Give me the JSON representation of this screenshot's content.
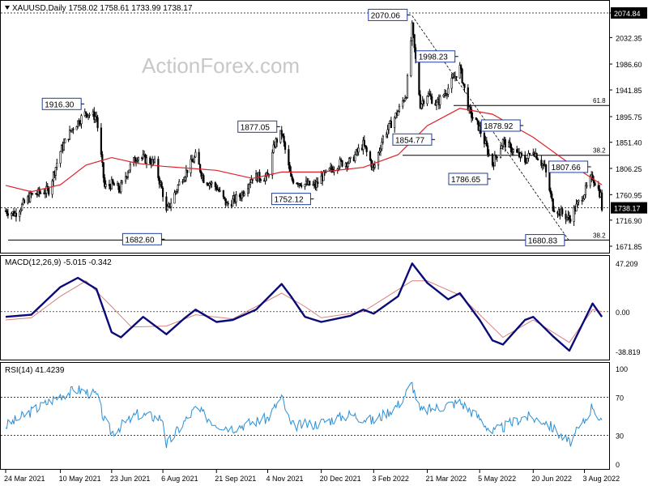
{
  "header": {
    "symbol_line": "XAUUSD,Daily  1758.02 1758.61 1733.99 1738.17",
    "watermark": "ActionForex.com"
  },
  "price_panel": {
    "y_ticks": [
      "2074.84",
      "2032.35",
      "1986.60",
      "1941.85",
      "1895.75",
      "1851.40",
      "1806.25",
      "1760.95",
      "1716.90",
      "1671.85"
    ],
    "current_price": "1738.17",
    "current_value": 1738.17,
    "ylim": [
      1671.85,
      2074.84
    ],
    "annotations": [
      {
        "text": "1916.30",
        "value": 1916.3,
        "date": "2021-06-01",
        "side": "left"
      },
      {
        "text": "1877.05",
        "value": 1877.05,
        "date": "2021-11-16",
        "side": "left"
      },
      {
        "text": "2070.06",
        "value": 2070.06,
        "date": "2022-03-08",
        "side": "left"
      },
      {
        "text": "1998.23",
        "value": 1998.23,
        "date": "2022-04-18",
        "side": "left"
      },
      {
        "text": "1854.77",
        "value": 1854.77,
        "date": "2022-03-29",
        "side": "left"
      },
      {
        "text": "1878.92",
        "value": 1878.92,
        "date": "2022-06-13",
        "side": "left"
      },
      {
        "text": "1807.66",
        "value": 1807.66,
        "date": "2022-08-10",
        "side": "left"
      },
      {
        "text": "1786.65",
        "value": 1786.65,
        "date": "2022-05-16",
        "side": "left"
      },
      {
        "text": "1752.12",
        "value": 1752.12,
        "date": "2021-12-15",
        "side": "left"
      },
      {
        "text": "1682.60",
        "value": 1682.6,
        "date": "2021-08-09",
        "side": "left"
      },
      {
        "text": "1680.83",
        "value": 1680.83,
        "date": "2022-07-21",
        "side": "left"
      }
    ],
    "fib_levels": [
      {
        "label": "61.8",
        "value": 1915.0
      },
      {
        "label": "38.2",
        "value": 1829.0
      },
      {
        "label": "38.2",
        "value": 1682.6
      }
    ],
    "dotted_levels": [
      2074.84,
      1738.17
    ]
  },
  "macd_panel": {
    "label": "MACD(12,26,9) -5.015 -0.342",
    "y_ticks": [
      "47.209",
      "0.00",
      "-38.819"
    ],
    "ylim": [
      -38.819,
      47.209
    ]
  },
  "rsi_panel": {
    "label": "RSI(14) 41.4239",
    "y_ticks": [
      "100",
      "70",
      "30",
      "0"
    ],
    "ylim": [
      0,
      100
    ],
    "levels": [
      70,
      30
    ]
  },
  "x_axis": {
    "labels": [
      "24 Mar 2021",
      "10 May 2021",
      "23 Jun 2021",
      "6 Aug 2021",
      "21 Sep 2021",
      "4 Nov 2021",
      "20 Dec 2021",
      "3 Feb 2022",
      "21 Mar 2022",
      "5 May 2022",
      "20 Jun 2022",
      "3 Aug 2022"
    ],
    "dates": [
      "2021-03-24",
      "2021-05-10",
      "2021-06-23",
      "2021-08-06",
      "2021-09-21",
      "2021-11-04",
      "2021-12-20",
      "2022-02-03",
      "2022-03-21",
      "2022-05-05",
      "2022-06-20",
      "2022-08-03"
    ]
  },
  "colors": {
    "candle": "#000000",
    "ma": "#e0202a",
    "macd": "#0a0a78",
    "signal": "#d98080",
    "rsi": "#2b8fd6",
    "label_border": "#1f3fa0",
    "grid": "#000000",
    "current_box": "#000000"
  },
  "chart_data": {
    "type": "candlestick",
    "title": "XAUUSD,Daily",
    "ohlc_latest": {
      "open": 1758.02,
      "high": 1758.61,
      "low": 1733.99,
      "close": 1738.17
    },
    "x_start": "2021-03-24",
    "x_end": "2022-08-17",
    "close_path": [
      [
        "2021-03-24",
        1733
      ],
      [
        "2021-04-01",
        1728
      ],
      [
        "2021-04-15",
        1760
      ],
      [
        "2021-04-30",
        1769
      ],
      [
        "2021-05-10",
        1836
      ],
      [
        "2021-05-20",
        1875
      ],
      [
        "2021-06-01",
        1903
      ],
      [
        "2021-06-10",
        1895
      ],
      [
        "2021-06-17",
        1774
      ],
      [
        "2021-06-23",
        1779
      ],
      [
        "2021-06-30",
        1770
      ],
      [
        "2021-07-07",
        1803
      ],
      [
        "2021-07-15",
        1828
      ],
      [
        "2021-07-30",
        1815
      ],
      [
        "2021-08-06",
        1763
      ],
      [
        "2021-08-09",
        1730
      ],
      [
        "2021-08-20",
        1781
      ],
      [
        "2021-09-03",
        1827
      ],
      [
        "2021-09-10",
        1788
      ],
      [
        "2021-09-21",
        1774
      ],
      [
        "2021-09-30",
        1743
      ],
      [
        "2021-10-12",
        1760
      ],
      [
        "2021-10-22",
        1792
      ],
      [
        "2021-11-04",
        1791
      ],
      [
        "2021-11-10",
        1849
      ],
      [
        "2021-11-16",
        1868
      ],
      [
        "2021-11-24",
        1788
      ],
      [
        "2021-12-06",
        1779
      ],
      [
        "2021-12-15",
        1776
      ],
      [
        "2021-12-20",
        1790
      ],
      [
        "2022-01-04",
        1815
      ],
      [
        "2022-01-14",
        1818
      ],
      [
        "2022-01-25",
        1848
      ],
      [
        "2022-02-03",
        1805
      ],
      [
        "2022-02-11",
        1860
      ],
      [
        "2022-02-24",
        1905
      ],
      [
        "2022-03-03",
        1936
      ],
      [
        "2022-03-08",
        2050
      ],
      [
        "2022-03-15",
        1917
      ],
      [
        "2022-03-21",
        1935
      ],
      [
        "2022-03-29",
        1917
      ],
      [
        "2022-04-08",
        1945
      ],
      [
        "2022-04-18",
        1980
      ],
      [
        "2022-04-26",
        1905
      ],
      [
        "2022-05-05",
        1875
      ],
      [
        "2022-05-16",
        1814
      ],
      [
        "2022-05-25",
        1853
      ],
      [
        "2022-06-13",
        1819
      ],
      [
        "2022-06-20",
        1838
      ],
      [
        "2022-06-30",
        1807
      ],
      [
        "2022-07-07",
        1740
      ],
      [
        "2022-07-21",
        1719
      ],
      [
        "2022-08-03",
        1765
      ],
      [
        "2022-08-10",
        1792
      ],
      [
        "2022-08-17",
        1760
      ],
      [
        "2022-08-18",
        1738
      ]
    ],
    "ma_path": [
      [
        "2021-03-24",
        1777
      ],
      [
        "2021-04-15",
        1766
      ],
      [
        "2021-05-10",
        1778
      ],
      [
        "2021-06-01",
        1812
      ],
      [
        "2021-06-23",
        1825
      ],
      [
        "2021-07-15",
        1815
      ],
      [
        "2021-08-06",
        1810
      ],
      [
        "2021-09-21",
        1803
      ],
      [
        "2021-10-22",
        1789
      ],
      [
        "2021-11-16",
        1800
      ],
      [
        "2021-12-20",
        1800
      ],
      [
        "2022-01-25",
        1808
      ],
      [
        "2022-02-24",
        1830
      ],
      [
        "2022-03-21",
        1880
      ],
      [
        "2022-04-18",
        1910
      ],
      [
        "2022-05-16",
        1900
      ],
      [
        "2022-06-20",
        1860
      ],
      [
        "2022-07-21",
        1815
      ],
      [
        "2022-08-18",
        1778
      ]
    ],
    "macd_path": [
      [
        "2021-03-24",
        -5
      ],
      [
        "2021-04-15",
        -3
      ],
      [
        "2021-05-10",
        24
      ],
      [
        "2021-05-25",
        33
      ],
      [
        "2021-06-10",
        22
      ],
      [
        "2021-06-23",
        -20
      ],
      [
        "2021-07-01",
        -25
      ],
      [
        "2021-07-20",
        -5
      ],
      [
        "2021-08-09",
        -22
      ],
      [
        "2021-08-25",
        -6
      ],
      [
        "2021-09-03",
        2
      ],
      [
        "2021-09-21",
        -10
      ],
      [
        "2021-10-05",
        -8
      ],
      [
        "2021-10-25",
        2
      ],
      [
        "2021-11-16",
        27
      ],
      [
        "2021-11-24",
        15
      ],
      [
        "2021-12-06",
        -5
      ],
      [
        "2021-12-20",
        -10
      ],
      [
        "2022-01-14",
        -4
      ],
      [
        "2022-01-25",
        2
      ],
      [
        "2022-02-03",
        -2
      ],
      [
        "2022-02-24",
        15
      ],
      [
        "2022-03-08",
        47
      ],
      [
        "2022-03-21",
        28
      ],
      [
        "2022-04-08",
        12
      ],
      [
        "2022-04-18",
        18
      ],
      [
        "2022-05-05",
        -8
      ],
      [
        "2022-05-16",
        -28
      ],
      [
        "2022-05-25",
        -32
      ],
      [
        "2022-06-13",
        -8
      ],
      [
        "2022-06-20",
        -5
      ],
      [
        "2022-07-07",
        -24
      ],
      [
        "2022-07-21",
        -38
      ],
      [
        "2022-08-03",
        -8
      ],
      [
        "2022-08-10",
        8
      ],
      [
        "2022-08-18",
        -5
      ]
    ],
    "signal_path": [
      [
        "2021-03-24",
        -8
      ],
      [
        "2021-04-15",
        -6
      ],
      [
        "2021-05-10",
        15
      ],
      [
        "2021-06-01",
        30
      ],
      [
        "2021-06-23",
        5
      ],
      [
        "2021-07-10",
        -15
      ],
      [
        "2021-08-09",
        -14
      ],
      [
        "2021-09-03",
        -3
      ],
      [
        "2021-10-05",
        -7
      ],
      [
        "2021-11-16",
        18
      ],
      [
        "2021-12-06",
        5
      ],
      [
        "2021-12-20",
        -6
      ],
      [
        "2022-01-25",
        0
      ],
      [
        "2022-03-08",
        30
      ],
      [
        "2022-03-21",
        30
      ],
      [
        "2022-04-18",
        16
      ],
      [
        "2022-05-16",
        -15
      ],
      [
        "2022-05-25",
        -25
      ],
      [
        "2022-06-20",
        -8
      ],
      [
        "2022-07-21",
        -30
      ],
      [
        "2022-08-10",
        2
      ],
      [
        "2022-08-18",
        0
      ]
    ],
    "rsi_path": [
      [
        "2021-03-24",
        40
      ],
      [
        "2021-04-15",
        55
      ],
      [
        "2021-05-10",
        72
      ],
      [
        "2021-05-25",
        78
      ],
      [
        "2021-06-10",
        72
      ],
      [
        "2021-06-17",
        45
      ],
      [
        "2021-06-23",
        33
      ],
      [
        "2021-07-15",
        52
      ],
      [
        "2021-08-06",
        48
      ],
      [
        "2021-08-09",
        20
      ],
      [
        "2021-08-25",
        45
      ],
      [
        "2021-09-03",
        58
      ],
      [
        "2021-09-21",
        42
      ],
      [
        "2021-10-05",
        38
      ],
      [
        "2021-11-04",
        48
      ],
      [
        "2021-11-16",
        70
      ],
      [
        "2021-11-24",
        40
      ],
      [
        "2021-12-15",
        42
      ],
      [
        "2022-01-14",
        52
      ],
      [
        "2022-02-03",
        45
      ],
      [
        "2022-02-24",
        62
      ],
      [
        "2022-03-08",
        84
      ],
      [
        "2022-03-15",
        55
      ],
      [
        "2022-04-18",
        65
      ],
      [
        "2022-05-05",
        48
      ],
      [
        "2022-05-16",
        33
      ],
      [
        "2022-06-13",
        50
      ],
      [
        "2022-06-30",
        45
      ],
      [
        "2022-07-21",
        22
      ],
      [
        "2022-08-03",
        45
      ],
      [
        "2022-08-10",
        62
      ],
      [
        "2022-08-18",
        41.4
      ]
    ]
  }
}
